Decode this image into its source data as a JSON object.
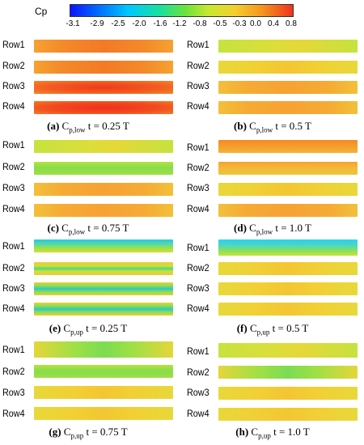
{
  "colorbar": {
    "title": "Cp",
    "ticks": [
      "-3.1",
      "-2.9",
      "-2.5",
      "-2.0",
      "-1.6",
      "-1.2",
      "-0.8",
      "-0.5",
      "-0.3",
      "0.0",
      "0.4",
      "0.8"
    ]
  },
  "rows": [
    "Row1",
    "Row2",
    "Row3",
    "Row4"
  ],
  "panels": [
    {
      "caption_letter": "(a)",
      "caption_var": "C",
      "caption_sub": "p,low",
      "caption_time": "t = 0.25 T"
    },
    {
      "caption_letter": "(b)",
      "caption_var": "C",
      "caption_sub": "p,low",
      "caption_time": "t = 0.5 T"
    },
    {
      "caption_letter": "(c)",
      "caption_var": "C",
      "caption_sub": "p,low",
      "caption_time": "t = 0.75 T"
    },
    {
      "caption_letter": "(d)",
      "caption_var": "C",
      "caption_sub": "p,low",
      "caption_time": "t = 1.0 T"
    },
    {
      "caption_letter": "(e)",
      "caption_var": "C",
      "caption_sub": "p,up",
      "caption_time": "t = 0.25 T"
    },
    {
      "caption_letter": "(f)",
      "caption_var": "C",
      "caption_sub": "p,up",
      "caption_time": "t = 0.5 T"
    },
    {
      "caption_letter": "(g)",
      "caption_var": "C",
      "caption_sub": "p,up",
      "caption_time": "t = 0.75 T"
    },
    {
      "caption_letter": "(h)",
      "caption_var": "C",
      "caption_sub": "p,up",
      "caption_time": "t = 1.0 T"
    }
  ]
}
